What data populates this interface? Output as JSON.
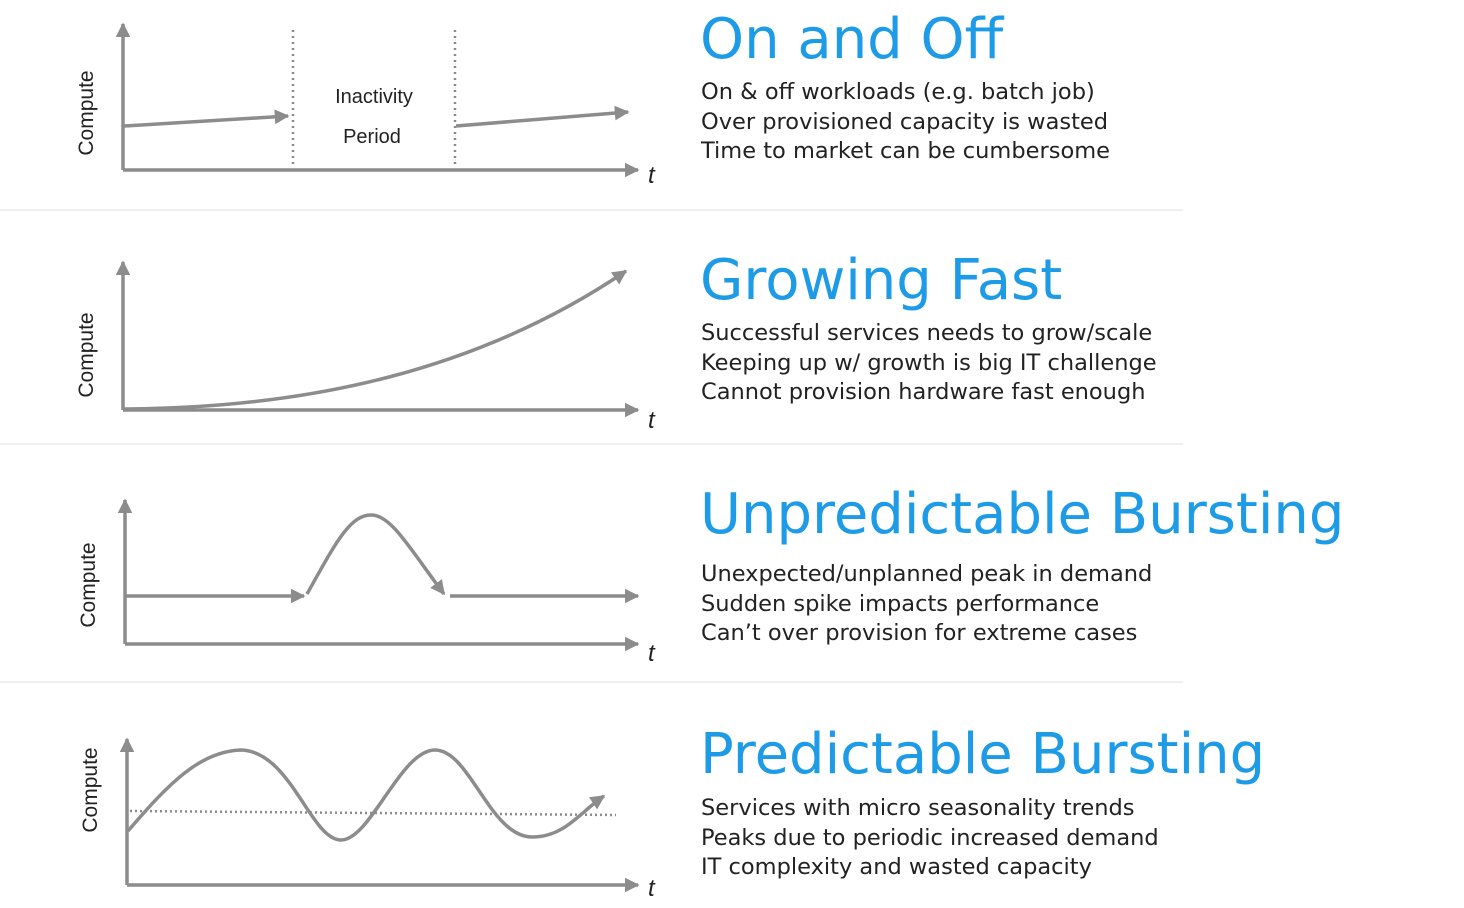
{
  "colors": {
    "title": "#1d9be6",
    "stroke": "#8c8c8c",
    "text": "#222222",
    "divider": "#efefef"
  },
  "sections": [
    {
      "title": "On and Off",
      "lines": [
        "On & off workloads (e.g. batch job)",
        "Over provisioned capacity is wasted",
        "Time to market can be cumbersome"
      ],
      "chart": {
        "y_axis_label": "Compute",
        "x_axis_label": "t",
        "annotation_line1": "Inactivity",
        "annotation_line2": "Period"
      }
    },
    {
      "title": "Growing Fast",
      "lines": [
        "Successful services needs to grow/scale",
        "Keeping up w/ growth is big IT challenge",
        "Cannot provision hardware fast enough"
      ],
      "chart": {
        "y_axis_label": "Compute",
        "x_axis_label": "t"
      }
    },
    {
      "title": "Unpredictable Bursting",
      "lines": [
        "Unexpected/unplanned peak in demand",
        "Sudden spike impacts performance",
        "Can’t over provision for extreme cases"
      ],
      "chart": {
        "y_axis_label": "Compute",
        "x_axis_label": "t"
      }
    },
    {
      "title": "Predictable Bursting",
      "lines": [
        "Services with micro seasonality trends",
        "Peaks due to periodic increased demand",
        "IT complexity and wasted capacity"
      ],
      "chart": {
        "y_axis_label": "Compute",
        "x_axis_label": "t"
      }
    }
  ]
}
